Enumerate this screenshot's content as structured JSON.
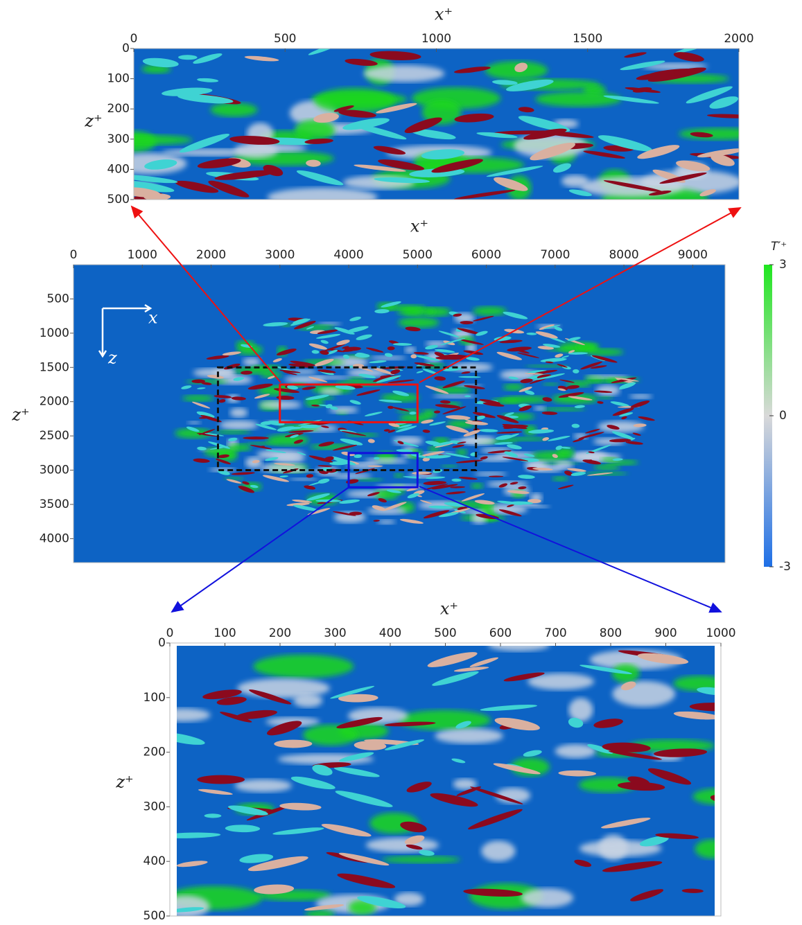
{
  "chart_data": [
    {
      "type": "field",
      "xlabel": "x⁺",
      "ylabel": "z⁺",
      "xlim": [
        0,
        2000
      ],
      "ylim": [
        0,
        500
      ],
      "xticks": [
        0,
        500,
        1000,
        1500,
        2000
      ],
      "yticks": [
        0,
        100,
        200,
        300,
        400,
        500
      ],
      "background": "#0d63c4",
      "density": "full"
    },
    {
      "type": "field",
      "xlabel": "x⁺",
      "ylabel": "z⁺",
      "xlim": [
        0,
        9470
      ],
      "ylim": [
        0,
        4350
      ],
      "xticks": [
        0,
        1000,
        2000,
        3000,
        4000,
        5000,
        6000,
        7000,
        8000,
        9000
      ],
      "yticks": [
        500,
        1000,
        1500,
        2000,
        2500,
        3000,
        3500,
        4000
      ],
      "background": "#0d63c4",
      "density": "spot",
      "axis_labels": [
        "x",
        "z"
      ],
      "regions": [
        {
          "x": [
            2100,
            5850
          ],
          "z": [
            1500,
            3000
          ],
          "color": "#111111",
          "dashed": true
        },
        {
          "x": [
            3000,
            5000
          ],
          "z": [
            1750,
            2300
          ],
          "color": "#ee1111",
          "dashed": false
        },
        {
          "x": [
            4000,
            5000
          ],
          "z": [
            2750,
            3250
          ],
          "color": "#1111dd",
          "dashed": false
        }
      ]
    },
    {
      "type": "colorbar",
      "title": "T′⁺",
      "lim": [
        -3,
        3
      ],
      "ticks": [
        -3,
        0,
        3
      ],
      "colors": [
        "#1e6fe6",
        "#d9d9d9",
        "#1fe61f"
      ]
    },
    {
      "type": "field",
      "xlabel": "x⁺",
      "ylabel": "z⁺",
      "xlim": [
        0,
        1000
      ],
      "ylim": [
        0,
        500
      ],
      "xticks": [
        0,
        100,
        200,
        300,
        400,
        500,
        600,
        700,
        800,
        900,
        1000
      ],
      "yticks": [
        0,
        100,
        200,
        300,
        400,
        500
      ],
      "background": "#0d63c4",
      "density": "full"
    }
  ]
}
